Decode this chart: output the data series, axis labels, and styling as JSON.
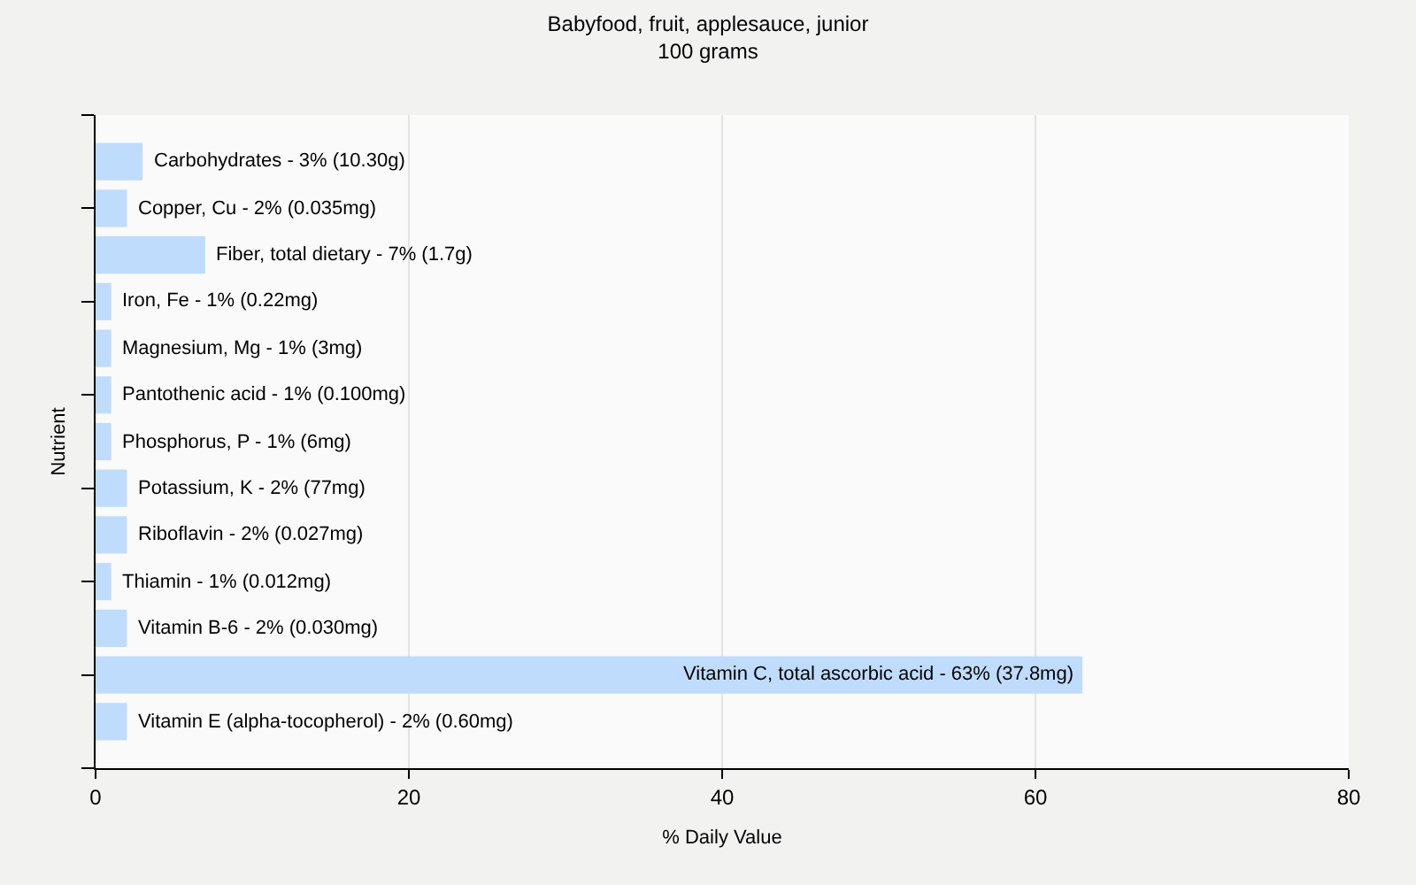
{
  "chart_data": {
    "type": "bar",
    "orientation": "horizontal",
    "title": "Babyfood, fruit, applesauce, junior",
    "subtitle": "100 grams",
    "xlabel": "% Daily Value",
    "ylabel": "Nutrient",
    "categories": [
      "Carbohydrates - 3% (10.30g)",
      "Copper, Cu - 2% (0.035mg)",
      "Fiber, total dietary - 7% (1.7g)",
      "Iron, Fe - 1% (0.22mg)",
      "Magnesium, Mg - 1% (3mg)",
      "Pantothenic acid - 1% (0.100mg)",
      "Phosphorus, P - 1% (6mg)",
      "Potassium, K - 2% (77mg)",
      "Riboflavin - 2% (0.027mg)",
      "Thiamin - 1% (0.012mg)",
      "Vitamin B-6 - 2% (0.030mg)",
      "Vitamin C, total ascorbic acid - 63% (37.8mg)",
      "Vitamin E (alpha-tocopherol) - 2% (0.60mg)"
    ],
    "values": [
      3,
      2,
      7,
      1,
      1,
      1,
      1,
      2,
      2,
      1,
      2,
      63,
      2
    ],
    "color": "#c0dcfc",
    "xlim": [
      0,
      80
    ],
    "xticks": [
      0,
      20,
      40,
      60,
      80
    ],
    "grid": "x",
    "tick_labels": "x"
  }
}
